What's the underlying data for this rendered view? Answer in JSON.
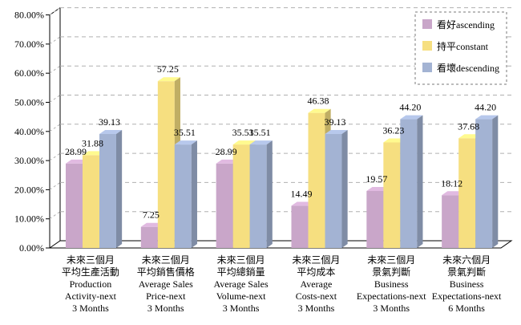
{
  "chart_data": {
    "type": "bar",
    "categories": [
      [
        "未來三個月",
        "平均生產活動",
        "Production",
        "Activity-next",
        "3 Months"
      ],
      [
        "未來三個月",
        "平均銷售價格",
        "Average Sales",
        "Price-next",
        "3 Months"
      ],
      [
        "未來三個月",
        "平均總銷量",
        "Average Sales",
        "Volume-next",
        "3 Months"
      ],
      [
        "未來三個月",
        "平均成本",
        "Average",
        "Costs-next",
        "3 Months"
      ],
      [
        "未來三個月",
        "景氣判斷",
        "Business",
        "Expectations-next",
        "3 Months"
      ],
      [
        "未來六個月",
        "景氣判斷",
        "Business",
        "Expectations-next",
        "6 Months"
      ]
    ],
    "series": [
      {
        "name": "看好ascending",
        "color": "#c9a6c9",
        "values": [
          28.99,
          7.25,
          28.99,
          14.49,
          19.57,
          18.12
        ]
      },
      {
        "name": "持平constant",
        "color": "#f6df80",
        "values": [
          31.88,
          57.25,
          35.51,
          46.38,
          36.23,
          37.68
        ]
      },
      {
        "name": "看壞descending",
        "color": "#a3b3d3",
        "values": [
          39.13,
          35.51,
          35.51,
          39.13,
          44.2,
          44.2
        ]
      }
    ],
    "value_labels": [
      [
        "28.99",
        "31.88",
        "39.13"
      ],
      [
        "7.25",
        "57.25",
        "35.51"
      ],
      [
        "28.99",
        "35.51",
        "35.51"
      ],
      [
        "14.49",
        "46.38",
        "39.13"
      ],
      [
        "19.57",
        "36.23",
        "44.20"
      ],
      [
        "18.12",
        "37.68",
        "44.20"
      ]
    ],
    "y_ticks": [
      "0.00%",
      "10.00%",
      "20.00%",
      "30.00%",
      "40.00%",
      "50.00%",
      "60.00%",
      "70.00%",
      "80.00%"
    ],
    "ylim": [
      0,
      80
    ],
    "y_unit": "%",
    "grid": true,
    "legend_position": "top-right",
    "style": "3d-bar"
  }
}
